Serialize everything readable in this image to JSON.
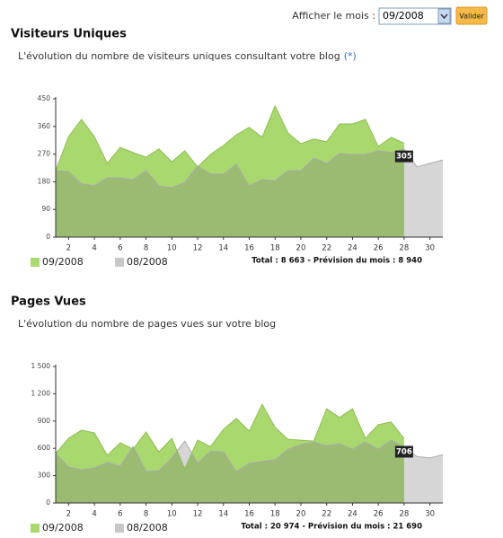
{
  "form": {
    "label": "Afficher le mois :",
    "selected": "09/2008",
    "button": "Valider"
  },
  "chart_data": [
    {
      "type": "area",
      "title": "Visiteurs Uniques",
      "subtitle": "L'évolution du nombre de visiteurs uniques consultant votre blog",
      "note": "(*)",
      "total": "Total : 8 663 - Prévision du mois : 8 940",
      "x": [
        1,
        2,
        3,
        4,
        5,
        6,
        7,
        8,
        9,
        10,
        11,
        12,
        13,
        14,
        15,
        16,
        17,
        18,
        19,
        20,
        21,
        22,
        23,
        24,
        25,
        26,
        27,
        28,
        29,
        30,
        31
      ],
      "xlim": [
        1,
        31
      ],
      "xticks": [
        2,
        4,
        6,
        8,
        10,
        12,
        14,
        16,
        18,
        20,
        22,
        24,
        26,
        28,
        30
      ],
      "ylim": [
        0,
        450
      ],
      "yticks": [
        0,
        90,
        180,
        270,
        360,
        450
      ],
      "series": [
        {
          "name": "09/2008",
          "color": "#a9d86e",
          "values": [
            216,
            327,
            383,
            327,
            240,
            292,
            275,
            260,
            287,
            245,
            281,
            228,
            269,
            298,
            333,
            357,
            325,
            427,
            339,
            304,
            319,
            310,
            368,
            368,
            383,
            295,
            325,
            305,
            null,
            null,
            null
          ]
        },
        {
          "name": "08/2008",
          "color": "#c8c8c8",
          "values": [
            216,
            213,
            173,
            167,
            193,
            193,
            187,
            216,
            167,
            161,
            178,
            231,
            205,
            205,
            237,
            167,
            187,
            184,
            216,
            216,
            257,
            240,
            272,
            269,
            269,
            281,
            275,
            287,
            228,
            240,
            251
          ]
        }
      ]
    },
    {
      "type": "area",
      "title": "Pages Vues",
      "subtitle": "L'évolution du nombre de pages vues sur votre blog",
      "total": "Total : 20 974 - Prévision du mois : 21 690",
      "x": [
        1,
        2,
        3,
        4,
        5,
        6,
        7,
        8,
        9,
        10,
        11,
        12,
        13,
        14,
        15,
        16,
        17,
        18,
        19,
        20,
        21,
        22,
        23,
        24,
        25,
        26,
        27,
        28,
        29,
        30,
        31
      ],
      "xlim": [
        1,
        31
      ],
      "xticks": [
        2,
        4,
        6,
        8,
        10,
        12,
        14,
        16,
        18,
        20,
        22,
        24,
        26,
        28,
        30
      ],
      "ylim": [
        0,
        1500
      ],
      "yticks": [
        0,
        300,
        600,
        900,
        {
          "value": 1200,
          "label": "1 200"
        },
        {
          "value": 1500,
          "label": "1 500"
        }
      ],
      "series": [
        {
          "name": "09/2008",
          "color": "#a9d86e",
          "values": [
            543,
            711,
            800,
            770,
            523,
            661,
            592,
            780,
            560,
            710,
            375,
            690,
            620,
            810,
            930,
            790,
            1085,
            830,
            700,
            690,
            680,
            1035,
            940,
            1035,
            710,
            860,
            890,
            706,
            null,
            null,
            null
          ]
        },
        {
          "name": "08/2008",
          "color": "#c8c8c8",
          "values": [
            543,
            395,
            365,
            385,
            445,
            405,
            620,
            345,
            355,
            495,
            680,
            435,
            570,
            560,
            345,
            435,
            455,
            475,
            590,
            640,
            670,
            630,
            650,
            590,
            670,
            590,
            690,
            610,
            510,
            495,
            530
          ]
        }
      ]
    }
  ]
}
